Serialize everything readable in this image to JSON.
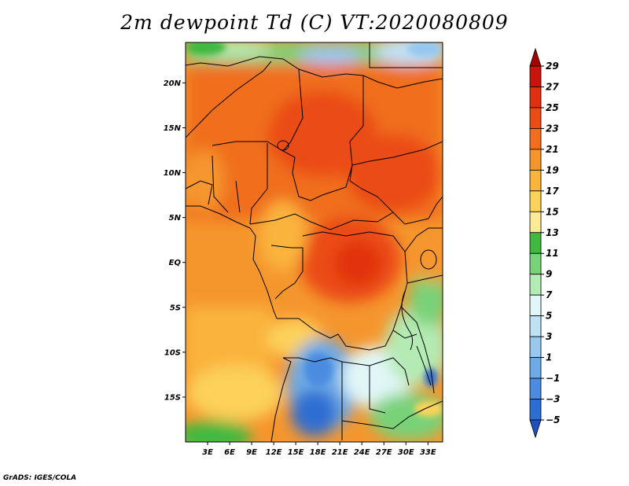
{
  "title": "2m dewpoint Td (C) VT:2020080809",
  "credit": "GrADS: IGES/COLA",
  "map": {
    "lon_range": [
      0,
      35
    ],
    "lat_range": [
      -20,
      24.5
    ],
    "lat_ticks": [
      {
        "value": 20,
        "label": "20N"
      },
      {
        "value": 15,
        "label": "15N"
      },
      {
        "value": 10,
        "label": "10N"
      },
      {
        "value": 5,
        "label": "5N"
      },
      {
        "value": 0,
        "label": "EQ"
      },
      {
        "value": -5,
        "label": "5S"
      },
      {
        "value": -10,
        "label": "10S"
      },
      {
        "value": -15,
        "label": "15S"
      }
    ],
    "lon_ticks": [
      {
        "value": 3,
        "label": "3E"
      },
      {
        "value": 6,
        "label": "6E"
      },
      {
        "value": 9,
        "label": "9E"
      },
      {
        "value": 12,
        "label": "12E"
      },
      {
        "value": 15,
        "label": "15E"
      },
      {
        "value": 18,
        "label": "18E"
      },
      {
        "value": 21,
        "label": "21E"
      },
      {
        "value": 24,
        "label": "24E"
      },
      {
        "value": 27,
        "label": "27E"
      },
      {
        "value": 30,
        "label": "30E"
      },
      {
        "value": 33,
        "label": "33E"
      }
    ]
  },
  "colorbar": {
    "labels": [
      "29",
      "27",
      "25",
      "23",
      "21",
      "19",
      "17",
      "15",
      "13",
      "11",
      "9",
      "7",
      "5",
      "3",
      "1",
      "−1",
      "−3",
      "−5"
    ],
    "colors": [
      "#a50000",
      "#c8140a",
      "#e1300f",
      "#eb4b14",
      "#f06e1e",
      "#f5962d",
      "#fab43c",
      "#fcd25a",
      "#fceb96",
      "#41b941",
      "#78d278",
      "#b4eab4",
      "#e1f7f7",
      "#bee1f5",
      "#96c8f0",
      "#6eaae6",
      "#4b8ce1",
      "#2d6ed2",
      "#1e50be"
    ]
  }
}
